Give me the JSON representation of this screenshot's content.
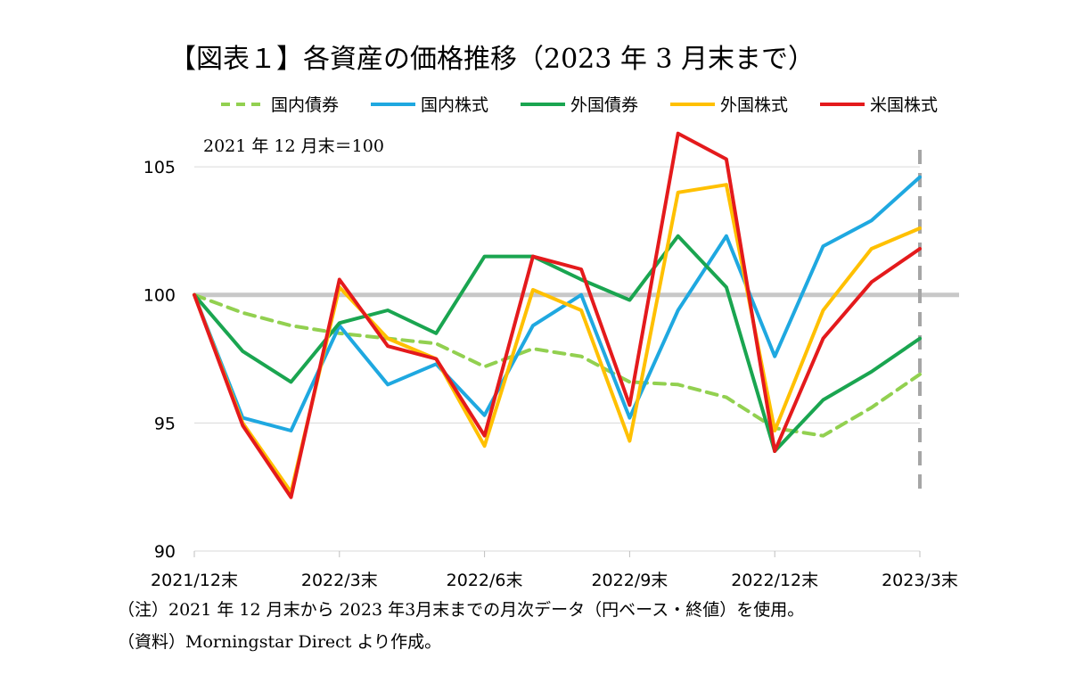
{
  "title": "【図表１】各資産の価格推移（2023 年 3 月末まで）",
  "base_note": "2021 年 12 月末＝100",
  "footnote": "（注）2021 年 12 月末から 2023 年3月末までの月次データ（円ベース・終値）を使用。",
  "source": "（資料）Morningstar Direct より作成。",
  "chart_data": {
    "type": "line",
    "x": [
      "2021/12末",
      "2022/1末",
      "2022/2末",
      "2022/3末",
      "2022/4末",
      "2022/5末",
      "2022/6末",
      "2022/7末",
      "2022/8末",
      "2022/9末",
      "2022/10末",
      "2022/11末",
      "2022/12末",
      "2023/1末",
      "2023/2末",
      "2023/3末"
    ],
    "tick_labels": [
      "2021/12末",
      "2022/3末",
      "2022/6末",
      "2022/9末",
      "2022/12末",
      "2023/3末"
    ],
    "tick_index": [
      0,
      3,
      6,
      9,
      12,
      15
    ],
    "ylim": [
      90,
      106.5
    ],
    "yticks": [
      90,
      95,
      100,
      105
    ],
    "baseline": 100,
    "grid": true,
    "legend_position": "top",
    "series": [
      {
        "name": "国内債券",
        "color": "#92d050",
        "dashed": true,
        "values": [
          100,
          99.3,
          98.8,
          98.5,
          98.3,
          98.1,
          97.2,
          97.9,
          97.6,
          96.6,
          96.5,
          96.0,
          94.8,
          94.5,
          95.6,
          96.9
        ]
      },
      {
        "name": "国内株式",
        "color": "#1fa8e0",
        "dashed": false,
        "values": [
          100,
          95.2,
          94.7,
          98.8,
          96.5,
          97.3,
          95.3,
          98.8,
          100.0,
          95.2,
          99.4,
          102.3,
          97.6,
          101.9,
          102.9,
          104.6
        ]
      },
      {
        "name": "外国債券",
        "color": "#1aa550",
        "dashed": false,
        "values": [
          100,
          97.8,
          96.6,
          98.9,
          99.4,
          98.5,
          101.5,
          101.5,
          100.6,
          99.8,
          102.3,
          100.3,
          93.9,
          95.9,
          97.0,
          98.3
        ]
      },
      {
        "name": "外国株式",
        "color": "#ffc000",
        "dashed": false,
        "values": [
          100,
          95.0,
          92.3,
          100.3,
          98.3,
          97.5,
          94.1,
          100.2,
          99.4,
          94.3,
          104.0,
          104.3,
          94.7,
          99.4,
          101.8,
          102.6
        ]
      },
      {
        "name": "米国株式",
        "color": "#e41a1c",
        "dashed": false,
        "values": [
          100,
          94.9,
          92.1,
          100.6,
          98.0,
          97.5,
          94.5,
          101.5,
          101.0,
          95.7,
          106.3,
          105.3,
          93.9,
          98.3,
          100.5,
          101.8
        ]
      }
    ]
  }
}
